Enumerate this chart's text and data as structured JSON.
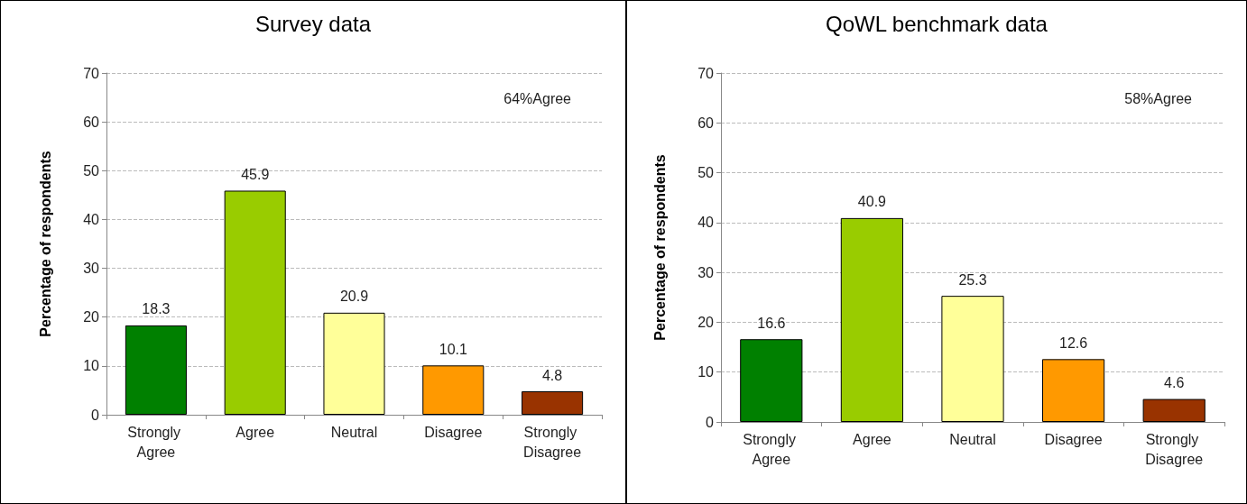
{
  "chart_data": [
    {
      "type": "bar",
      "title": "Survey data",
      "ylabel": "Percentage of respondents",
      "categories": [
        "Strongly Agree",
        "Agree",
        "Neutral",
        "Disagree",
        "Strongly Disagree"
      ],
      "values": [
        18.3,
        45.9,
        20.9,
        10.1,
        4.8
      ],
      "colors": [
        "#008000",
        "#99cc00",
        "#ffff99",
        "#ff9900",
        "#993300"
      ],
      "ylim": [
        0,
        70
      ],
      "yticks": [
        0,
        10,
        20,
        30,
        40,
        50,
        60,
        70
      ],
      "grid": "y",
      "data_labels": true,
      "annotations": [
        "64%Agree"
      ]
    },
    {
      "type": "bar",
      "title": "QoWL benchmark data",
      "ylabel": "Percentage of respondents",
      "categories": [
        "Strongly Agree",
        "Agree",
        "Neutral",
        "Disagree",
        "Strongly Disagree"
      ],
      "values": [
        16.6,
        40.9,
        25.3,
        12.6,
        4.6
      ],
      "colors": [
        "#008000",
        "#99cc00",
        "#ffff99",
        "#ff9900",
        "#993300"
      ],
      "ylim": [
        0,
        70
      ],
      "yticks": [
        0,
        10,
        20,
        30,
        40,
        50,
        60,
        70
      ],
      "grid": "y",
      "data_labels": true,
      "annotations": [
        "58%Agree"
      ]
    }
  ]
}
